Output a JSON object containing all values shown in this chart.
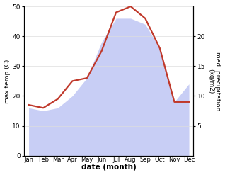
{
  "months": [
    "Jan",
    "Feb",
    "Mar",
    "Apr",
    "May",
    "Jun",
    "Jul",
    "Aug",
    "Sep",
    "Oct",
    "Nov",
    "Dec"
  ],
  "month_indices": [
    0,
    1,
    2,
    3,
    4,
    5,
    6,
    7,
    8,
    9,
    10,
    11
  ],
  "temp": [
    17,
    16,
    19,
    25,
    26,
    35,
    48,
    50,
    46,
    36,
    18,
    18
  ],
  "precip": [
    8,
    7.5,
    8,
    10,
    13,
    19,
    23,
    23,
    22,
    18,
    9,
    12
  ],
  "temp_color": "#c0392b",
  "precip_fill_color": "#c8cef5",
  "temp_ylim": [
    0,
    50
  ],
  "precip_ylim": [
    0,
    25
  ],
  "precip_yticks": [
    5,
    10,
    15,
    20
  ],
  "temp_yticks": [
    0,
    10,
    20,
    30,
    40,
    50
  ],
  "xlabel": "date (month)",
  "ylabel_left": "max temp (C)",
  "ylabel_right": "med. precipitation\n(kg/m2)",
  "line_width": 1.6,
  "bg_color": "#f5f5f5"
}
